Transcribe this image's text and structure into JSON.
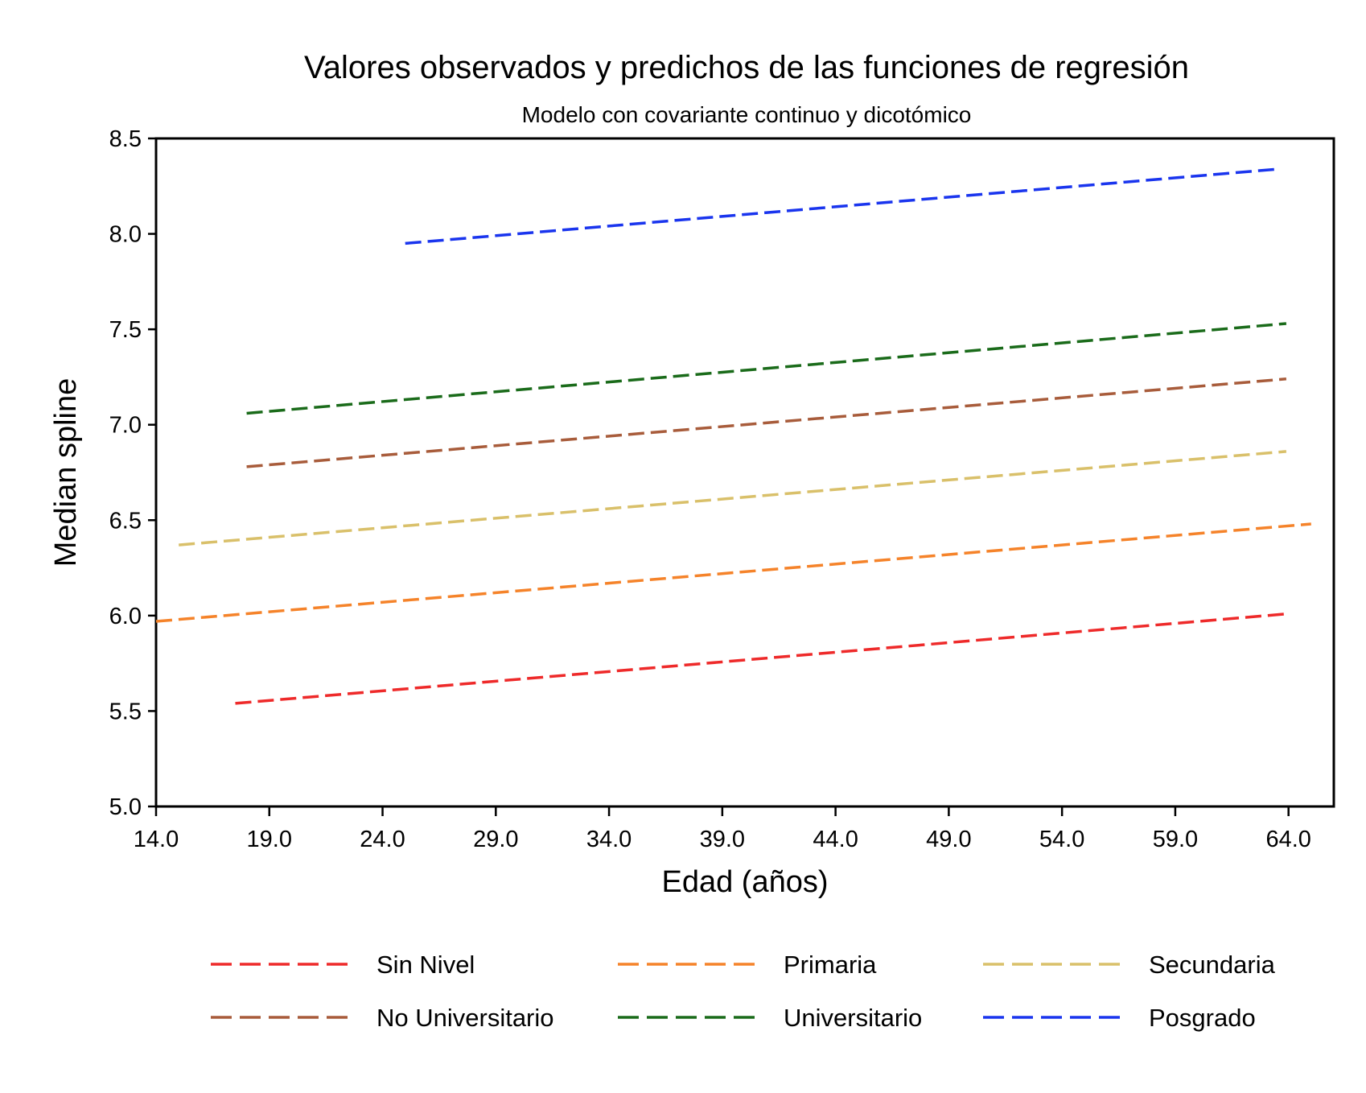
{
  "chart_data": {
    "type": "line",
    "title": "Valores observados y predichos de las funciones de regresión",
    "subtitle": "Modelo con covariante continuo y dicotómico",
    "xlabel": "Edad (años)",
    "ylabel": "Median spline",
    "xlim": [
      14.0,
      66.0
    ],
    "ylim": [
      5.0,
      8.5
    ],
    "xticks": [
      "14.0",
      "19.0",
      "24.0",
      "29.0",
      "34.0",
      "39.0",
      "44.0",
      "49.0",
      "54.0",
      "59.0",
      "64.0"
    ],
    "yticks": [
      "5.0",
      "5.5",
      "6.0",
      "6.5",
      "7.0",
      "7.5",
      "8.0",
      "8.5"
    ],
    "grid": false,
    "legend_position": "bottom",
    "series": [
      {
        "name": "Sin Nivel",
        "color": "#ee2a2a",
        "x": [
          17.5,
          64.0
        ],
        "y": [
          5.54,
          6.01
        ]
      },
      {
        "name": "Primaria",
        "color": "#f5832a",
        "x": [
          14.0,
          65.0
        ],
        "y": [
          5.97,
          6.48
        ]
      },
      {
        "name": "Secundaria",
        "color": "#d9c06a",
        "x": [
          15.0,
          63.9
        ],
        "y": [
          6.37,
          6.86
        ]
      },
      {
        "name": "No Universitario",
        "color": "#a85c3b",
        "x": [
          18.0,
          63.9
        ],
        "y": [
          6.78,
          7.24
        ]
      },
      {
        "name": "Universitario",
        "color": "#1a6b1a",
        "x": [
          18.0,
          63.9
        ],
        "y": [
          7.06,
          7.53
        ]
      },
      {
        "name": "Posgrado",
        "color": "#1a35ee",
        "x": [
          25.0,
          63.6
        ],
        "y": [
          7.95,
          8.34
        ]
      }
    ]
  }
}
